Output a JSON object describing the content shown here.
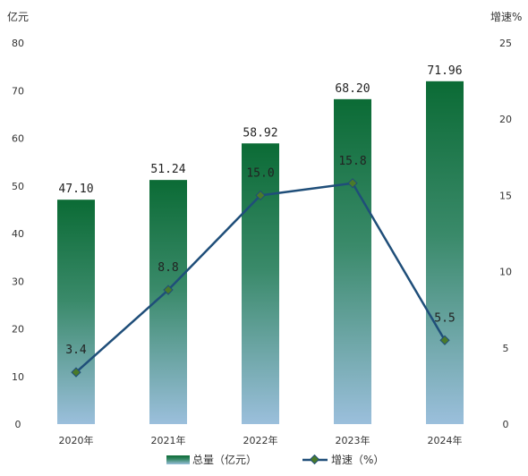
{
  "chart_data": {
    "type": "bar",
    "categories": [
      "2020年",
      "2021年",
      "2022年",
      "2023年",
      "2024年"
    ],
    "series": [
      {
        "name": "总量（亿元）",
        "type": "bar",
        "axis": "left",
        "values": [
          47.1,
          51.24,
          58.92,
          68.2,
          71.96
        ]
      },
      {
        "name": "增速（%）",
        "type": "line",
        "axis": "right",
        "values": [
          3.4,
          8.8,
          15.0,
          15.8,
          5.5
        ]
      }
    ],
    "bar_labels": [
      "47.10",
      "51.24",
      "58.92",
      "68.20",
      "71.96"
    ],
    "line_labels": [
      "3.4",
      "8.8",
      "15.0",
      "15.8",
      "5.5"
    ],
    "y_left": {
      "label": "亿元",
      "min": 0,
      "max": 80,
      "ticks": [
        0,
        10,
        20,
        30,
        40,
        50,
        60,
        70,
        80
      ]
    },
    "y_right": {
      "label": "增速%",
      "min": 0,
      "max": 25,
      "ticks": [
        0,
        5,
        10,
        15,
        20,
        25
      ]
    },
    "grid": false,
    "legend_position": "bottom",
    "colors": {
      "bar_top": "#0b6b35",
      "bar_mid": "#3a8a6a",
      "bar_bottom": "#9bbfdc",
      "line": "#1f4e79",
      "marker_fill": "#4a7a2a",
      "text": "#333333"
    }
  }
}
